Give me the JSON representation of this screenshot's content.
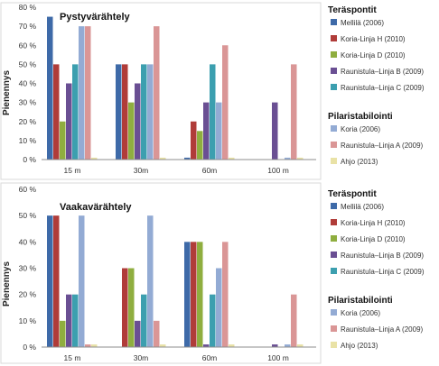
{
  "palette": [
    "#3E6AA8",
    "#B03C39",
    "#8FAE3F",
    "#6A4F93",
    "#3C9FAF",
    "#93ABD4",
    "#DA9696",
    "#E9E2A6"
  ],
  "legend_groups": [
    {
      "title": "Teräspontit",
      "items": [
        "Mellilä (2006)",
        "Koria-Linja H (2010)",
        "Koria-Linja D (2010)",
        "Raunistula–Linja B (2009)",
        "Raunistula–Linja C (2009)"
      ]
    },
    {
      "title": "Pilaristabilointi",
      "items": [
        "Koria (2006)",
        "Raunistula–Linja A (2009)",
        "Ahjo (2013)"
      ]
    }
  ],
  "chart_data": [
    {
      "type": "bar",
      "title": "Pystyvärähtely",
      "ylabel": "Pienennys",
      "ylim": [
        0,
        80
      ],
      "ytick_step": 10,
      "ytick_labels": [
        "0 %",
        "10 %",
        "20 %",
        "30 %",
        "40 %",
        "50 %",
        "60 %",
        "70 %",
        "80 %"
      ],
      "categories": [
        "15 m",
        "30m",
        "60m",
        "100 m"
      ],
      "grid": false,
      "legend": "right",
      "series": [
        {
          "name": "Mellilä (2006)",
          "values": [
            75,
            50,
            1,
            0
          ]
        },
        {
          "name": "Koria-Linja H (2010)",
          "values": [
            50,
            50,
            20,
            0
          ]
        },
        {
          "name": "Koria-Linja D (2010)",
          "values": [
            20,
            30,
            15,
            0
          ]
        },
        {
          "name": "Raunistula–Linja B (2009)",
          "values": [
            40,
            40,
            30,
            30
          ]
        },
        {
          "name": "Raunistula–Linja C (2009)",
          "values": [
            50,
            50,
            50,
            0
          ]
        },
        {
          "name": "Koria (2006)",
          "values": [
            70,
            50,
            30,
            1
          ]
        },
        {
          "name": "Raunistula–Linja A (2009)",
          "values": [
            70,
            70,
            60,
            50
          ]
        },
        {
          "name": "Ahjo (2013)",
          "values": [
            1,
            1,
            1,
            1
          ]
        }
      ]
    },
    {
      "type": "bar",
      "title": "Vaakavärähtely",
      "ylabel": "Pienennys",
      "ylim": [
        0,
        60
      ],
      "ytick_step": 10,
      "ytick_labels": [
        "0 %",
        "10 %",
        "20 %",
        "30 %",
        "40 %",
        "50 %",
        "60 %"
      ],
      "categories": [
        "15 m",
        "30m",
        "60m",
        "100 m"
      ],
      "grid": false,
      "legend": "right",
      "series": [
        {
          "name": "Mellilä (2006)",
          "values": [
            50,
            0,
            40,
            0
          ]
        },
        {
          "name": "Koria-Linja H (2010)",
          "values": [
            50,
            30,
            40,
            0
          ]
        },
        {
          "name": "Koria-Linja D (2010)",
          "values": [
            10,
            30,
            40,
            0
          ]
        },
        {
          "name": "Raunistula–Linja B (2009)",
          "values": [
            20,
            10,
            1,
            1
          ]
        },
        {
          "name": "Raunistula–Linja C (2009)",
          "values": [
            20,
            20,
            20,
            0
          ]
        },
        {
          "name": "Koria (2006)",
          "values": [
            50,
            50,
            30,
            1
          ]
        },
        {
          "name": "Raunistula–Linja A (2009)",
          "values": [
            1,
            10,
            40,
            20
          ]
        },
        {
          "name": "Ahjo (2013)",
          "values": [
            1,
            1,
            1,
            1
          ]
        }
      ]
    }
  ]
}
